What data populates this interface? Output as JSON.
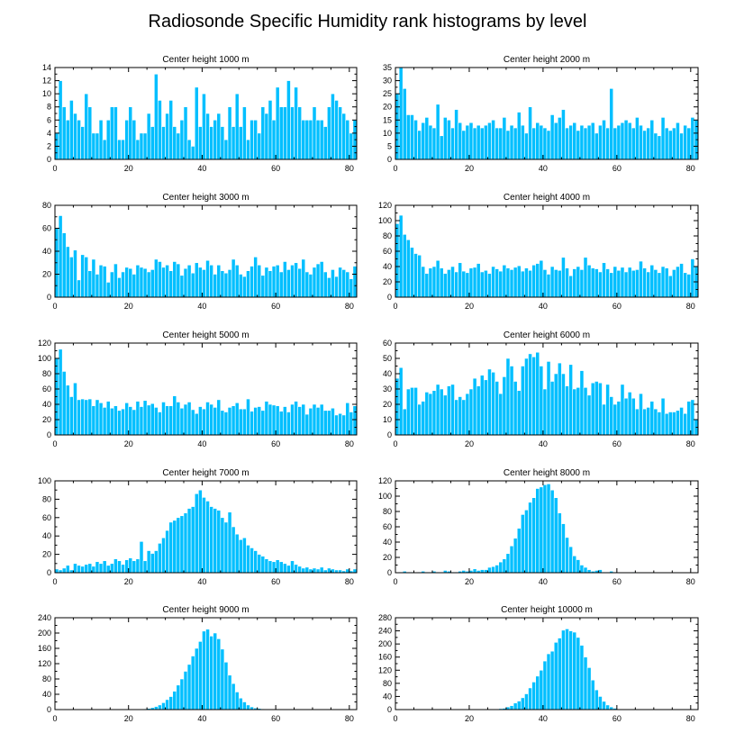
{
  "figure": {
    "title": "Radiosonde Specific Humidity rank histograms by level",
    "bar_color": "#00bfff"
  },
  "chart_data": [
    {
      "type": "bar",
      "title": "Center height 1000 m",
      "xlim": [
        0,
        82
      ],
      "x_ticks": [
        0,
        20,
        40,
        60,
        80
      ],
      "ylim": [
        0,
        14
      ],
      "y_ticks": [
        0,
        2,
        4,
        6,
        8,
        10,
        12,
        14
      ],
      "values": [
        4,
        12,
        8,
        6,
        9,
        7,
        6,
        5,
        10,
        8,
        4,
        4,
        6,
        3,
        6,
        8,
        8,
        3,
        3,
        6,
        8,
        6,
        3,
        4,
        4,
        7,
        5,
        13,
        9,
        5,
        7,
        9,
        5,
        4,
        6,
        8,
        3,
        2,
        11,
        5,
        10,
        7,
        5,
        6,
        7,
        5,
        3,
        8,
        5,
        10,
        5,
        8,
        3,
        6,
        6,
        4,
        8,
        7,
        9,
        6,
        11,
        8,
        8,
        12,
        8,
        11,
        8,
        6,
        6,
        6,
        8,
        6,
        6,
        5,
        8,
        10,
        9,
        8,
        7,
        6,
        4,
        6
      ]
    },
    {
      "type": "bar",
      "title": "Center height 2000 m",
      "xlim": [
        0,
        82
      ],
      "x_ticks": [
        0,
        20,
        40,
        60,
        80
      ],
      "ylim": [
        0,
        35
      ],
      "y_ticks": [
        0,
        5,
        10,
        15,
        20,
        25,
        30,
        35
      ],
      "values": [
        25,
        35,
        27,
        17,
        17,
        15,
        11,
        14,
        16,
        13,
        12,
        21,
        9,
        16,
        15,
        12,
        19,
        14,
        11,
        13,
        14,
        12,
        13,
        12,
        13,
        14,
        15,
        12,
        12,
        16,
        11,
        13,
        12,
        18,
        13,
        10,
        20,
        12,
        14,
        13,
        12,
        11,
        17,
        14,
        16,
        19,
        12,
        13,
        14,
        11,
        13,
        12,
        13,
        14,
        10,
        13,
        15,
        12,
        27,
        12,
        13,
        14,
        15,
        14,
        12,
        16,
        13,
        11,
        12,
        15,
        10,
        9,
        16,
        12,
        11,
        12,
        14,
        10,
        13,
        12,
        16,
        15
      ]
    },
    {
      "type": "bar",
      "title": "Center height 3000 m",
      "xlim": [
        0,
        82
      ],
      "x_ticks": [
        0,
        20,
        40,
        60,
        80
      ],
      "ylim": [
        0,
        80
      ],
      "y_ticks": [
        0,
        20,
        40,
        60,
        80
      ],
      "values": [
        60,
        71,
        56,
        44,
        35,
        41,
        15,
        37,
        35,
        23,
        33,
        20,
        28,
        27,
        13,
        22,
        29,
        17,
        22,
        26,
        25,
        20,
        28,
        26,
        25,
        22,
        24,
        33,
        31,
        26,
        28,
        23,
        31,
        29,
        19,
        25,
        28,
        21,
        30,
        26,
        24,
        32,
        28,
        20,
        28,
        23,
        21,
        24,
        33,
        28,
        20,
        18,
        23,
        27,
        35,
        28,
        19,
        26,
        23,
        27,
        28,
        22,
        31,
        24,
        28,
        30,
        25,
        33,
        22,
        20,
        26,
        29,
        31,
        22,
        17,
        24,
        18,
        26,
        24,
        22,
        16,
        27
      ]
    },
    {
      "type": "bar",
      "title": "Center height 4000 m",
      "xlim": [
        0,
        82
      ],
      "x_ticks": [
        0,
        20,
        40,
        60,
        80
      ],
      "ylim": [
        0,
        120
      ],
      "y_ticks": [
        0,
        20,
        40,
        60,
        80,
        100,
        120
      ],
      "values": [
        96,
        107,
        82,
        75,
        65,
        57,
        55,
        40,
        31,
        38,
        40,
        48,
        38,
        31,
        36,
        40,
        33,
        45,
        34,
        32,
        38,
        39,
        44,
        33,
        35,
        31,
        40,
        37,
        34,
        42,
        38,
        36,
        39,
        41,
        34,
        38,
        35,
        42,
        44,
        48,
        36,
        30,
        40,
        36,
        35,
        52,
        38,
        28,
        37,
        40,
        36,
        52,
        42,
        38,
        37,
        33,
        45,
        37,
        32,
        40,
        35,
        39,
        33,
        39,
        35,
        36,
        47,
        38,
        33,
        42,
        36,
        32,
        40,
        38,
        28,
        36,
        40,
        44,
        32,
        30,
        50,
        41
      ]
    },
    {
      "type": "bar",
      "title": "Center height 5000 m",
      "xlim": [
        0,
        82
      ],
      "x_ticks": [
        0,
        20,
        40,
        60,
        80
      ],
      "ylim": [
        0,
        120
      ],
      "y_ticks": [
        0,
        20,
        40,
        60,
        80,
        100,
        120
      ],
      "values": [
        100,
        112,
        83,
        65,
        50,
        68,
        46,
        47,
        46,
        47,
        38,
        46,
        42,
        36,
        44,
        35,
        38,
        32,
        34,
        42,
        37,
        33,
        44,
        37,
        45,
        39,
        41,
        36,
        30,
        43,
        38,
        38,
        51,
        43,
        35,
        40,
        43,
        33,
        28,
        37,
        34,
        43,
        40,
        36,
        46,
        32,
        30,
        36,
        38,
        42,
        34,
        34,
        47,
        31,
        36,
        37,
        32,
        44,
        40,
        39,
        38,
        31,
        37,
        30,
        40,
        44,
        37,
        40,
        27,
        35,
        40,
        36,
        40,
        32,
        32,
        35,
        26,
        28,
        26,
        42,
        30,
        38
      ]
    },
    {
      "type": "bar",
      "title": "Center height 6000 m",
      "xlim": [
        0,
        82
      ],
      "x_ticks": [
        0,
        20,
        40,
        60,
        80
      ],
      "ylim": [
        0,
        60
      ],
      "y_ticks": [
        0,
        10,
        20,
        30,
        40,
        50,
        60
      ],
      "values": [
        37,
        44,
        17,
        30,
        31,
        31,
        20,
        22,
        28,
        27,
        29,
        33,
        30,
        26,
        32,
        33,
        23,
        25,
        23,
        27,
        30,
        37,
        32,
        39,
        36,
        43,
        41,
        35,
        27,
        38,
        50,
        45,
        35,
        29,
        45,
        50,
        53,
        51,
        54,
        45,
        30,
        48,
        35,
        40,
        47,
        40,
        32,
        46,
        30,
        31,
        42,
        31,
        26,
        34,
        35,
        34,
        20,
        33,
        25,
        20,
        22,
        33,
        24,
        28,
        24,
        17,
        27,
        17,
        18,
        22,
        17,
        15,
        24,
        14,
        15,
        15,
        16,
        18,
        14,
        22,
        23,
        10
      ]
    },
    {
      "type": "bar",
      "title": "Center height 7000 m",
      "xlim": [
        0,
        82
      ],
      "x_ticks": [
        0,
        20,
        40,
        60,
        80
      ],
      "ylim": [
        0,
        100
      ],
      "y_ticks": [
        0,
        20,
        40,
        60,
        80,
        100
      ],
      "values": [
        4,
        3,
        5,
        8,
        3,
        10,
        8,
        7,
        9,
        10,
        7,
        12,
        10,
        13,
        8,
        10,
        15,
        13,
        9,
        14,
        16,
        13,
        15,
        34,
        13,
        24,
        21,
        24,
        32,
        38,
        46,
        55,
        57,
        60,
        62,
        65,
        70,
        72,
        86,
        90,
        82,
        78,
        72,
        70,
        68,
        60,
        55,
        66,
        50,
        42,
        36,
        38,
        30,
        27,
        24,
        20,
        18,
        15,
        13,
        12,
        14,
        12,
        10,
        8,
        13,
        9,
        7,
        5,
        6,
        4,
        5,
        4,
        6,
        3,
        5,
        4,
        3,
        3,
        2,
        4,
        2,
        4
      ]
    },
    {
      "type": "bar",
      "title": "Center height 8000 m",
      "xlim": [
        0,
        82
      ],
      "x_ticks": [
        0,
        20,
        40,
        60,
        80
      ],
      "ylim": [
        0,
        120
      ],
      "y_ticks": [
        0,
        20,
        40,
        60,
        80,
        100,
        120
      ],
      "values": [
        0,
        1,
        2,
        1,
        1,
        0,
        1,
        2,
        1,
        1,
        2,
        1,
        1,
        3,
        2,
        1,
        1,
        2,
        3,
        2,
        3,
        5,
        3,
        4,
        4,
        7,
        8,
        10,
        14,
        18,
        25,
        35,
        45,
        58,
        76,
        82,
        92,
        98,
        110,
        112,
        115,
        116,
        108,
        98,
        78,
        64,
        46,
        34,
        22,
        17,
        10,
        7,
        4,
        2,
        3,
        4,
        1,
        1,
        2,
        1,
        0,
        0,
        0,
        0,
        1,
        0,
        0,
        0,
        0,
        0,
        0,
        0,
        0,
        0,
        0,
        0,
        0,
        0,
        0,
        0,
        0,
        0
      ]
    },
    {
      "type": "bar",
      "title": "Center height 9000 m",
      "xlim": [
        0,
        82
      ],
      "x_ticks": [
        0,
        20,
        40,
        60,
        80
      ],
      "ylim": [
        0,
        240
      ],
      "y_ticks": [
        0,
        40,
        80,
        120,
        160,
        200,
        240
      ],
      "values": [
        0,
        0,
        0,
        0,
        0,
        0,
        0,
        0,
        0,
        0,
        0,
        0,
        0,
        0,
        0,
        0,
        0,
        0,
        0,
        0,
        0,
        0,
        0,
        1,
        2,
        3,
        5,
        8,
        12,
        18,
        26,
        34,
        48,
        64,
        80,
        100,
        118,
        140,
        160,
        178,
        205,
        210,
        192,
        200,
        185,
        158,
        124,
        90,
        68,
        46,
        30,
        20,
        12,
        7,
        4,
        3,
        2,
        1,
        0,
        0,
        0,
        0,
        0,
        0,
        0,
        0,
        0,
        0,
        0,
        0,
        0,
        0,
        0,
        0,
        0,
        0,
        0,
        0,
        0,
        0,
        0,
        0
      ]
    },
    {
      "type": "bar",
      "title": "Center height 10000 m",
      "xlim": [
        0,
        82
      ],
      "x_ticks": [
        0,
        20,
        40,
        60,
        80
      ],
      "ylim": [
        0,
        280
      ],
      "y_ticks": [
        0,
        40,
        80,
        120,
        160,
        200,
        240,
        280
      ],
      "values": [
        0,
        0,
        0,
        0,
        0,
        0,
        0,
        0,
        0,
        0,
        0,
        0,
        0,
        0,
        0,
        0,
        0,
        0,
        0,
        0,
        0,
        0,
        0,
        0,
        0,
        0,
        1,
        2,
        3,
        4,
        8,
        12,
        20,
        26,
        36,
        48,
        66,
        84,
        102,
        120,
        148,
        170,
        178,
        205,
        218,
        242,
        246,
        240,
        236,
        220,
        196,
        160,
        128,
        90,
        60,
        40,
        25,
        14,
        8,
        4,
        2,
        1,
        0,
        0,
        0,
        0,
        0,
        0,
        0,
        0,
        0,
        0,
        0,
        0,
        0,
        0,
        0,
        0,
        0,
        0,
        0,
        0
      ]
    }
  ]
}
